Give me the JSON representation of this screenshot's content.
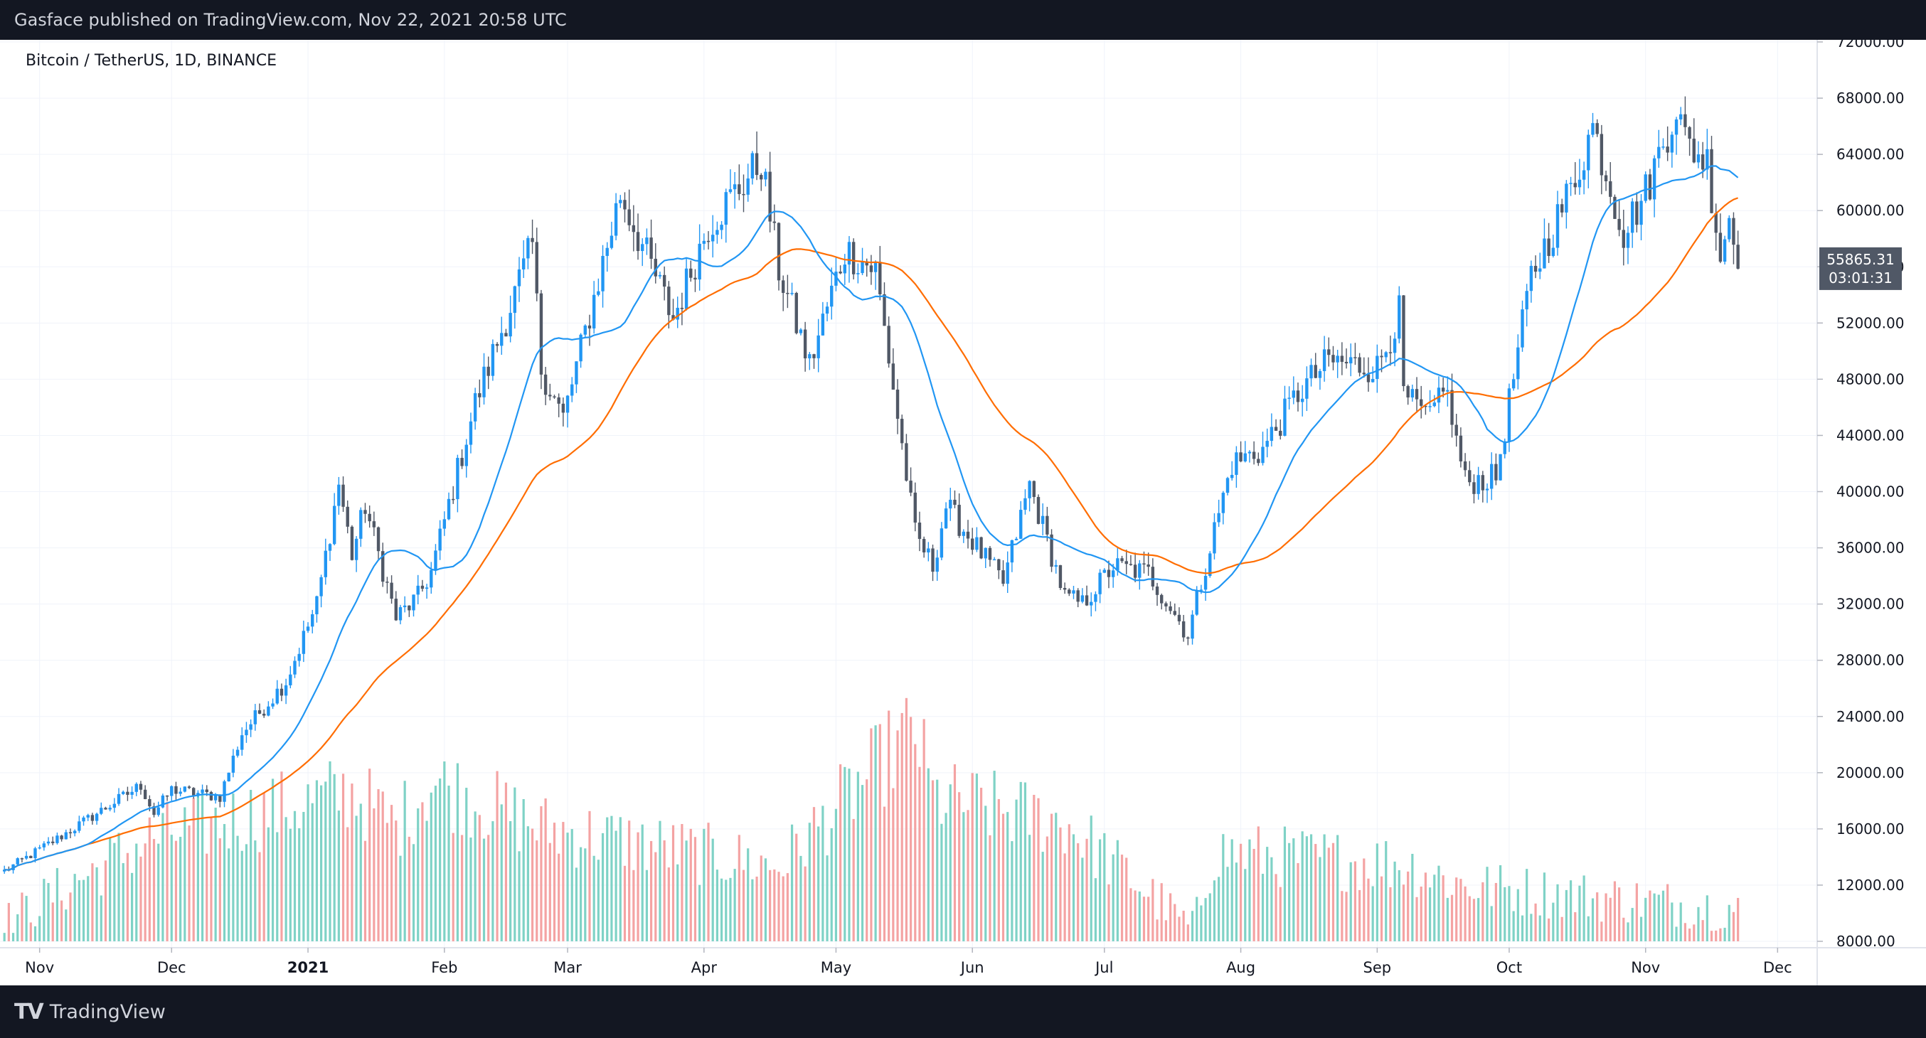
{
  "header": {
    "published": "Gasface published on TradingView.com, Nov 22, 2021 20:58 UTC"
  },
  "footer": {
    "brand": "TradingView",
    "logo_text": "TV"
  },
  "price_badge": {
    "price": "55865.31",
    "countdown": "03:01:31"
  },
  "colors": {
    "up": "#2196f3",
    "down": "#505866",
    "ma_fast": "#2196f3",
    "ma_slow": "#ff6d00",
    "vol_up": "#7fd2c6",
    "vol_down": "#f4a3a3",
    "badge_bg": "#505866"
  },
  "chart_data": {
    "type": "candlestick",
    "title": "Bitcoin / TetherUS, 1D, BINANCE",
    "ylim": [
      8000,
      72000
    ],
    "y_ticks": [
      "72000.00",
      "68000.00",
      "64000.00",
      "60000.00",
      "56000.00",
      "52000.00",
      "48000.00",
      "44000.00",
      "40000.00",
      "36000.00",
      "32000.00",
      "28000.00",
      "24000.00",
      "20000.00",
      "16000.00",
      "12000.00",
      "8000.00"
    ],
    "x_range": [
      "2020-10-23",
      "2021-12-10"
    ],
    "x_ticks": [
      {
        "date": "2020-11-01",
        "label": "Nov",
        "bold": false
      },
      {
        "date": "2020-12-01",
        "label": "Dec",
        "bold": false
      },
      {
        "date": "2021-01-01",
        "label": "2021",
        "bold": true
      },
      {
        "date": "2021-02-01",
        "label": "Feb",
        "bold": false
      },
      {
        "date": "2021-03-01",
        "label": "Mar",
        "bold": false
      },
      {
        "date": "2021-04-01",
        "label": "Apr",
        "bold": false
      },
      {
        "date": "2021-05-01",
        "label": "May",
        "bold": false
      },
      {
        "date": "2021-06-01",
        "label": "Jun",
        "bold": false
      },
      {
        "date": "2021-07-01",
        "label": "Jul",
        "bold": false
      },
      {
        "date": "2021-08-01",
        "label": "Aug",
        "bold": false
      },
      {
        "date": "2021-09-01",
        "label": "Sep",
        "bold": false
      },
      {
        "date": "2021-10-01",
        "label": "Oct",
        "bold": false
      },
      {
        "date": "2021-11-01",
        "label": "Nov",
        "bold": false
      },
      {
        "date": "2021-12-01",
        "label": "Dec",
        "bold": false
      }
    ],
    "start_date": "2020-10-24",
    "end_date": "2021-11-22",
    "close_anchors": [
      [
        "2020-10-24",
        13000
      ],
      [
        "2020-11-05",
        15300
      ],
      [
        "2020-11-24",
        19100
      ],
      [
        "2020-11-27",
        17100
      ],
      [
        "2020-12-01",
        18800
      ],
      [
        "2020-12-12",
        18300
      ],
      [
        "2020-12-17",
        22800
      ],
      [
        "2020-12-27",
        26500
      ],
      [
        "2021-01-03",
        32000
      ],
      [
        "2021-01-08",
        40600
      ],
      [
        "2021-01-11",
        35500
      ],
      [
        "2021-01-14",
        39000
      ],
      [
        "2021-01-21",
        31000
      ],
      [
        "2021-01-26",
        32500
      ],
      [
        "2021-01-29",
        34300
      ],
      [
        "2021-02-08",
        46300
      ],
      [
        "2021-02-21",
        57500
      ],
      [
        "2021-02-23",
        48800
      ],
      [
        "2021-02-28",
        45200
      ],
      [
        "2021-03-13",
        61200
      ],
      [
        "2021-03-25",
        52300
      ],
      [
        "2021-04-02",
        59000
      ],
      [
        "2021-04-14",
        63500
      ],
      [
        "2021-04-18",
        55800
      ],
      [
        "2021-04-25",
        49000
      ],
      [
        "2021-05-03",
        57200
      ],
      [
        "2021-05-10",
        55800
      ],
      [
        "2021-05-13",
        49500
      ],
      [
        "2021-05-19",
        37000
      ],
      [
        "2021-05-23",
        34700
      ],
      [
        "2021-05-26",
        39000
      ],
      [
        "2021-06-08",
        33500
      ],
      [
        "2021-06-14",
        40500
      ],
      [
        "2021-06-22",
        32500
      ],
      [
        "2021-06-26",
        32000
      ],
      [
        "2021-07-03",
        34700
      ],
      [
        "2021-07-11",
        34200
      ],
      [
        "2021-07-20",
        29800
      ],
      [
        "2021-07-26",
        37300
      ],
      [
        "2021-07-30",
        42000
      ],
      [
        "2021-08-06",
        43000
      ],
      [
        "2021-08-14",
        47000
      ],
      [
        "2021-08-21",
        49300
      ],
      [
        "2021-09-01",
        48800
      ],
      [
        "2021-09-06",
        52700
      ],
      [
        "2021-09-07",
        46800
      ],
      [
        "2021-09-13",
        45000
      ],
      [
        "2021-09-16",
        48000
      ],
      [
        "2021-09-21",
        40700
      ],
      [
        "2021-09-28",
        41000
      ],
      [
        "2021-10-06",
        55300
      ],
      [
        "2021-10-15",
        61500
      ],
      [
        "2021-10-20",
        66000
      ],
      [
        "2021-10-27",
        58500
      ],
      [
        "2021-11-01",
        61300
      ],
      [
        "2021-11-08",
        67500
      ],
      [
        "2021-11-10",
        64900
      ],
      [
        "2021-11-15",
        63500
      ],
      [
        "2021-11-18",
        56900
      ],
      [
        "2021-11-20",
        59700
      ],
      [
        "2021-11-22",
        55865
      ]
    ],
    "volume_anchors": [
      [
        "2020-10-24",
        9500
      ],
      [
        "2020-11-26",
        15600
      ],
      [
        "2021-01-11",
        19000
      ],
      [
        "2021-01-21",
        16500
      ],
      [
        "2021-01-29",
        19800
      ],
      [
        "2021-02-23",
        16400
      ],
      [
        "2021-04-18",
        13600
      ],
      [
        "2021-05-19",
        23600
      ],
      [
        "2021-05-23",
        18600
      ],
      [
        "2021-06-22",
        16800
      ],
      [
        "2021-07-21",
        9000
      ],
      [
        "2021-07-26",
        14600
      ],
      [
        "2021-09-07",
        13800
      ],
      [
        "2021-09-21",
        12200
      ],
      [
        "2021-11-22",
        10500
      ]
    ],
    "ma_fast": {
      "period": 20
    },
    "ma_slow": {
      "period": 50
    }
  }
}
